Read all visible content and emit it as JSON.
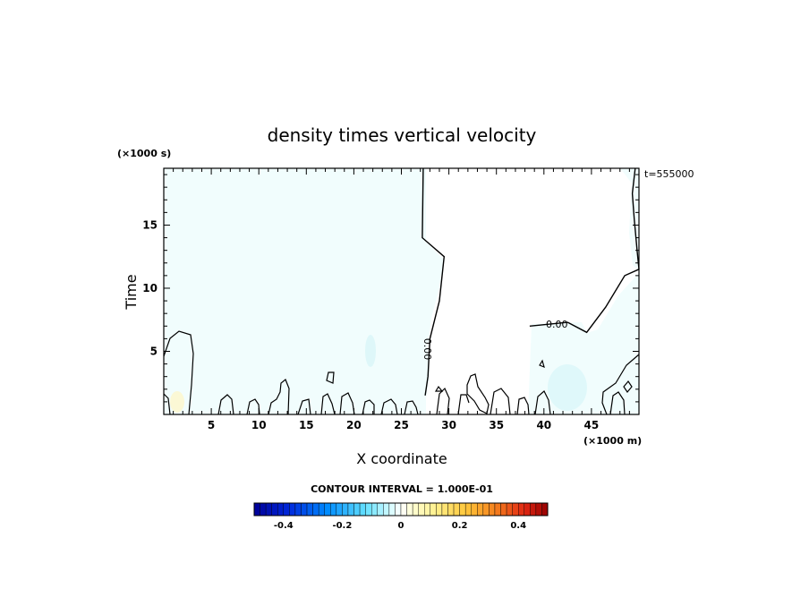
{
  "chart_data": {
    "type": "heatmap",
    "title": "density times vertical velocity",
    "xlabel": "X coordinate",
    "ylabel": "Time",
    "x_unit": "(×1000 m)",
    "y_unit": "(×1000 s)",
    "time_stamp": "t=555000",
    "xlim": [
      0,
      50
    ],
    "ylim": [
      0,
      19.5
    ],
    "x_ticks": [
      5,
      10,
      15,
      20,
      25,
      30,
      35,
      40,
      45
    ],
    "y_ticks": [
      5,
      10,
      15
    ],
    "contour_label": "0.00",
    "colorbar": {
      "title": "CONTOUR INTERVAL = 1.000E-01",
      "min": -0.5,
      "max": 0.5,
      "ticks": [
        -0.4,
        -0.2,
        0,
        0.2,
        0.4
      ],
      "tick_labels": [
        "-0.4",
        "-0.2",
        "0",
        "0.2",
        "0.4"
      ]
    },
    "zero_contour_right": [
      [
        50,
        11.5
      ],
      [
        49.8,
        13
      ],
      [
        49.5,
        15.5
      ],
      [
        49.3,
        17.5
      ],
      [
        49.6,
        19.5
      ]
    ],
    "zero_contour_mid": [
      [
        27.3,
        19.5
      ],
      [
        27.2,
        14
      ],
      [
        29.5,
        12.5
      ],
      [
        29,
        9
      ],
      [
        28,
        6
      ],
      [
        27.8,
        3
      ],
      [
        27.5,
        1.5
      ]
    ],
    "zero_contour_shelf": [
      [
        38.5,
        7
      ],
      [
        42.5,
        7.3
      ],
      [
        44.5,
        6.5
      ],
      [
        46.5,
        8.5
      ],
      [
        48.5,
        11
      ],
      [
        50,
        11.5
      ]
    ]
  }
}
